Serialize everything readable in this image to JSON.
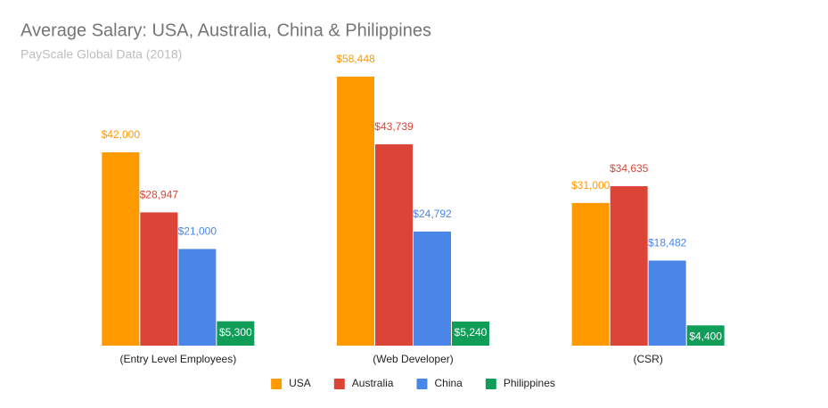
{
  "chart_data": {
    "type": "bar",
    "title": "Average Salary: USA, Australia, China & Philippines",
    "subtitle": "PayScale Global Data (2018)",
    "categories": [
      "(Entry Level Employees)",
      "(Web Developer)",
      "(CSR)"
    ],
    "series": [
      {
        "name": "USA",
        "color": "#ff9900",
        "values": [
          42000,
          58448,
          31000
        ],
        "value_labels": [
          "$42,000",
          "$58,448",
          "$31,000"
        ]
      },
      {
        "name": "Australia",
        "color": "#db4437",
        "values": [
          28947,
          43739,
          34635
        ],
        "value_labels": [
          "$28,947",
          "$43,739",
          "$34,635"
        ]
      },
      {
        "name": "China",
        "color": "#4a86e8",
        "values": [
          21000,
          24792,
          18482
        ],
        "value_labels": [
          "$21,000",
          "$24,792",
          "$18,482"
        ]
      },
      {
        "name": "Philippines",
        "color": "#0f9d58",
        "values": [
          5300,
          5240,
          4400
        ],
        "value_labels": [
          "$5,300",
          "$5,240",
          "$4,400"
        ]
      }
    ],
    "legend": "bottom"
  }
}
